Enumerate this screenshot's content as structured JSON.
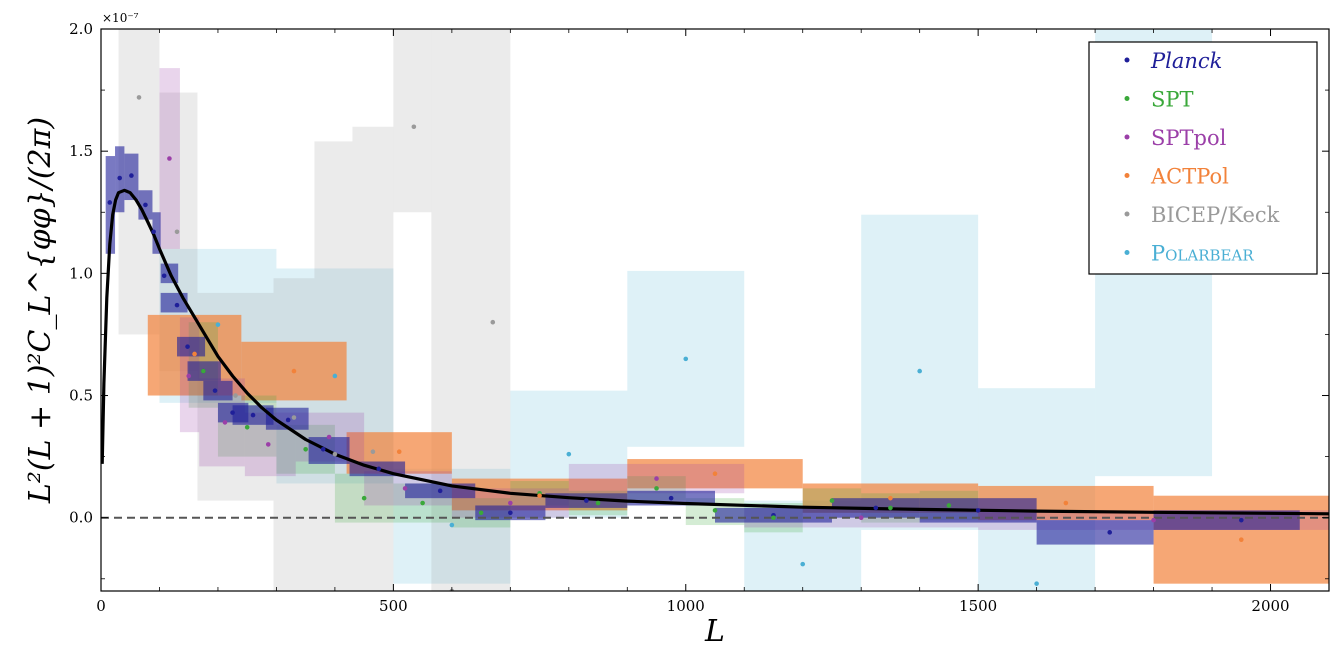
{
  "chart_data": {
    "type": "scatter",
    "xlabel": "L",
    "ylabel": "L²(L + 1)²C_L^{φφ}/(2π)",
    "y_multiplier_label": "×10⁻⁷",
    "xlim": [
      0,
      2100
    ],
    "ylim": [
      -0.3,
      2.0
    ],
    "x_ticks": [
      0,
      500,
      1000,
      1500,
      2000
    ],
    "y_ticks": [
      0.0,
      0.5,
      1.0,
      1.5,
      2.0
    ],
    "x_tick_labels": [
      "0",
      "500",
      "1000",
      "1500",
      "2000"
    ],
    "y_tick_labels": [
      "0.0",
      "0.5",
      "1.0",
      "1.5",
      "2.0"
    ],
    "grid": false,
    "legend_position": "top-right",
    "zero_line": {
      "y": 0,
      "style": "dashed",
      "color": "#555555"
    },
    "theory_curve": {
      "color": "#000000",
      "points": [
        [
          2,
          0.22
        ],
        [
          5,
          0.55
        ],
        [
          10,
          0.9
        ],
        [
          15,
          1.12
        ],
        [
          20,
          1.24
        ],
        [
          25,
          1.3
        ],
        [
          30,
          1.33
        ],
        [
          40,
          1.34
        ],
        [
          50,
          1.33
        ],
        [
          60,
          1.3
        ],
        [
          70,
          1.26
        ],
        [
          80,
          1.21
        ],
        [
          90,
          1.16
        ],
        [
          100,
          1.1
        ],
        [
          120,
          0.99
        ],
        [
          140,
          0.9
        ],
        [
          160,
          0.82
        ],
        [
          180,
          0.74
        ],
        [
          200,
          0.66
        ],
        [
          225,
          0.58
        ],
        [
          250,
          0.51
        ],
        [
          275,
          0.45
        ],
        [
          300,
          0.4
        ],
        [
          350,
          0.32
        ],
        [
          400,
          0.26
        ],
        [
          450,
          0.215
        ],
        [
          500,
          0.18
        ],
        [
          600,
          0.13
        ],
        [
          700,
          0.1
        ],
        [
          800,
          0.082
        ],
        [
          900,
          0.068
        ],
        [
          1000,
          0.058
        ],
        [
          1200,
          0.043
        ],
        [
          1400,
          0.034
        ],
        [
          1600,
          0.027
        ],
        [
          1800,
          0.022
        ],
        [
          2000,
          0.018
        ],
        [
          2100,
          0.016
        ]
      ]
    },
    "series": [
      {
        "name": "Planck",
        "color": "#1f1f99",
        "italic": true,
        "points": [
          {
            "x": 15,
            "y": 1.29,
            "x0": 8,
            "x1": 24,
            "y0": 1.08,
            "y1": 1.48
          },
          {
            "x": 32,
            "y": 1.39,
            "x0": 24,
            "x1": 40,
            "y0": 1.25,
            "y1": 1.52
          },
          {
            "x": 52,
            "y": 1.4,
            "x0": 40,
            "y0": 1.3,
            "x1": 64,
            "y1": 1.49
          },
          {
            "x": 76,
            "y": 1.28,
            "x0": 64,
            "x1": 88,
            "y0": 1.22,
            "y1": 1.34
          },
          {
            "x": 90,
            "y": 1.17,
            "x0": 88,
            "x1": 102,
            "y0": 1.08,
            "y1": 1.25
          },
          {
            "x": 108,
            "y": 0.99,
            "x0": 102,
            "x1": 132,
            "y0": 0.96,
            "y1": 1.04
          },
          {
            "x": 130,
            "y": 0.87,
            "x0": 102,
            "x1": 148,
            "y0": 0.84,
            "y1": 0.92
          },
          {
            "x": 148,
            "y": 0.7,
            "x0": 130,
            "x1": 178,
            "y0": 0.66,
            "y1": 0.74
          },
          {
            "x": 175,
            "y": 0.6,
            "x0": 148,
            "x1": 205,
            "y0": 0.56,
            "y1": 0.64
          },
          {
            "x": 195,
            "y": 0.52,
            "x0": 175,
            "x1": 225,
            "y0": 0.48,
            "y1": 0.56
          },
          {
            "x": 225,
            "y": 0.43,
            "x0": 200,
            "x1": 252,
            "y0": 0.39,
            "y1": 0.47
          },
          {
            "x": 260,
            "y": 0.42,
            "x0": 225,
            "x1": 295,
            "y0": 0.38,
            "y1": 0.46
          },
          {
            "x": 320,
            "y": 0.4,
            "x0": 282,
            "x1": 355,
            "y0": 0.36,
            "y1": 0.45
          },
          {
            "x": 380,
            "y": 0.28,
            "x0": 355,
            "x1": 425,
            "y0": 0.22,
            "y1": 0.33
          },
          {
            "x": 475,
            "y": 0.2,
            "x0": 425,
            "x1": 520,
            "y0": 0.17,
            "y1": 0.23
          },
          {
            "x": 580,
            "y": 0.11,
            "x0": 520,
            "x1": 640,
            "y0": 0.08,
            "y1": 0.14
          },
          {
            "x": 700,
            "y": 0.02,
            "x0": 640,
            "x1": 760,
            "y0": -0.01,
            "y1": 0.05
          },
          {
            "x": 830,
            "y": 0.07,
            "x0": 760,
            "x1": 900,
            "y0": 0.04,
            "y1": 0.1
          },
          {
            "x": 975,
            "y": 0.08,
            "x0": 900,
            "x1": 1050,
            "y0": 0.05,
            "y1": 0.11
          },
          {
            "x": 1150,
            "y": 0.01,
            "x0": 1050,
            "x1": 1250,
            "y0": -0.02,
            "y1": 0.04
          },
          {
            "x": 1325,
            "y": 0.04,
            "x0": 1250,
            "x1": 1400,
            "y0": 0.0,
            "y1": 0.08
          },
          {
            "x": 1500,
            "y": 0.03,
            "x0": 1400,
            "x1": 1600,
            "y0": -0.02,
            "y1": 0.08
          },
          {
            "x": 1725,
            "y": -0.06,
            "x0": 1600,
            "x1": 1800,
            "y0": -0.11,
            "y1": -0.01
          },
          {
            "x": 1950,
            "y": -0.01,
            "x0": 1800,
            "x1": 2050,
            "y0": -0.05,
            "y1": 0.03
          }
        ]
      },
      {
        "name": "SPT",
        "color": "#3aa83a",
        "italic": false,
        "points": [
          {
            "x": 175,
            "y": 0.6,
            "x0": 150,
            "x1": 200,
            "y0": 0.45,
            "y1": 0.8
          },
          {
            "x": 250,
            "y": 0.37,
            "x0": 200,
            "x1": 300,
            "y0": 0.25,
            "y1": 0.5
          },
          {
            "x": 350,
            "y": 0.28,
            "x0": 300,
            "x1": 400,
            "y0": 0.18,
            "y1": 0.38
          },
          {
            "x": 450,
            "y": 0.08,
            "x0": 400,
            "x1": 500,
            "y0": -0.02,
            "y1": 0.18
          },
          {
            "x": 550,
            "y": 0.06,
            "x0": 500,
            "x1": 600,
            "y0": -0.02,
            "y1": 0.14
          },
          {
            "x": 650,
            "y": 0.02,
            "x0": 600,
            "x1": 700,
            "y0": -0.04,
            "y1": 0.08
          },
          {
            "x": 750,
            "y": 0.1,
            "x0": 700,
            "x1": 800,
            "y0": 0.05,
            "y1": 0.15
          },
          {
            "x": 850,
            "y": 0.06,
            "x0": 800,
            "x1": 900,
            "y0": 0.01,
            "y1": 0.11
          },
          {
            "x": 950,
            "y": 0.12,
            "x0": 900,
            "x1": 1000,
            "y0": 0.07,
            "y1": 0.17
          },
          {
            "x": 1050,
            "y": 0.03,
            "x0": 1000,
            "x1": 1100,
            "y0": -0.03,
            "y1": 0.08
          },
          {
            "x": 1150,
            "y": 0.0,
            "x0": 1100,
            "x1": 1200,
            "y0": -0.06,
            "y1": 0.06
          },
          {
            "x": 1250,
            "y": 0.07,
            "x0": 1200,
            "x1": 1300,
            "y0": 0.02,
            "y1": 0.12
          },
          {
            "x": 1350,
            "y": 0.04,
            "x0": 1300,
            "x1": 1400,
            "y0": -0.02,
            "y1": 0.1
          },
          {
            "x": 1450,
            "y": 0.05,
            "x0": 1400,
            "x1": 1500,
            "y0": -0.01,
            "y1": 0.11
          }
        ]
      },
      {
        "name": "SPTpol",
        "color": "#9b3fa8",
        "italic": false,
        "points": [
          {
            "x": 117,
            "y": 1.47,
            "x0": 100,
            "x1": 135,
            "y0": 1.1,
            "y1": 1.84
          },
          {
            "x": 150,
            "y": 0.58,
            "x0": 135,
            "x1": 168,
            "y0": 0.35,
            "y1": 0.82
          },
          {
            "x": 212,
            "y": 0.39,
            "x0": 168,
            "x1": 246,
            "y0": 0.21,
            "y1": 0.57
          },
          {
            "x": 286,
            "y": 0.3,
            "x0": 246,
            "x1": 333,
            "y0": 0.17,
            "y1": 0.43
          },
          {
            "x": 390,
            "y": 0.33,
            "x0": 333,
            "x1": 450,
            "y0": 0.23,
            "y1": 0.43
          },
          {
            "x": 520,
            "y": 0.12,
            "x0": 450,
            "x1": 600,
            "y0": 0.05,
            "y1": 0.19
          },
          {
            "x": 700,
            "y": 0.06,
            "x0": 600,
            "x1": 800,
            "y0": 0.0,
            "y1": 0.12
          },
          {
            "x": 950,
            "y": 0.16,
            "x0": 800,
            "x1": 1100,
            "y0": 0.1,
            "y1": 0.22
          },
          {
            "x": 1300,
            "y": 0.0,
            "x0": 1100,
            "x1": 1500,
            "y0": -0.04,
            "y1": 0.04
          },
          {
            "x": 1800,
            "y": -0.01,
            "x0": 1500,
            "x1": 2100,
            "y0": -0.05,
            "y1": 0.03
          }
        ]
      },
      {
        "name": "ACTPol",
        "color": "#f2823a",
        "italic": false,
        "points": [
          {
            "x": 160,
            "y": 0.67,
            "x0": 80,
            "x1": 240,
            "y0": 0.5,
            "y1": 0.83
          },
          {
            "x": 330,
            "y": 0.6,
            "x0": 240,
            "x1": 420,
            "y0": 0.48,
            "y1": 0.72
          },
          {
            "x": 510,
            "y": 0.27,
            "x0": 420,
            "x1": 600,
            "y0": 0.18,
            "y1": 0.35
          },
          {
            "x": 750,
            "y": 0.09,
            "x0": 600,
            "x1": 900,
            "y0": 0.03,
            "y1": 0.16
          },
          {
            "x": 1050,
            "y": 0.18,
            "x0": 900,
            "x1": 1200,
            "y0": 0.12,
            "y1": 0.24
          },
          {
            "x": 1350,
            "y": 0.08,
            "x0": 1200,
            "x1": 1500,
            "y0": 0.02,
            "y1": 0.14
          },
          {
            "x": 1650,
            "y": 0.06,
            "x0": 1500,
            "x1": 1800,
            "y0": -0.01,
            "y1": 0.13
          },
          {
            "x": 1950,
            "y": -0.09,
            "x0": 1800,
            "x1": 2100,
            "y0": -0.27,
            "y1": 0.09
          }
        ]
      },
      {
        "name": "BICEP/Keck",
        "color": "#9a9a9a",
        "italic": false,
        "points": [
          {
            "x": 65,
            "y": 1.72,
            "x0": 30,
            "x1": 100,
            "y0": 0.75,
            "y1": 2.05
          },
          {
            "x": 130,
            "y": 1.17,
            "x0": 100,
            "x1": 165,
            "y0": 0.6,
            "y1": 1.74
          },
          {
            "x": 230,
            "y": 0.5,
            "x0": 165,
            "x1": 295,
            "y0": 0.07,
            "y1": 0.92
          },
          {
            "x": 330,
            "y": 0.41,
            "x0": 295,
            "x1": 365,
            "y0": -0.3,
            "y1": 0.98
          },
          {
            "x": 400,
            "y": 0.26,
            "x0": 365,
            "x1": 430,
            "y0": -0.3,
            "y1": 1.54
          },
          {
            "x": 465,
            "y": 0.27,
            "x0": 430,
            "x1": 500,
            "y0": -0.3,
            "y1": 1.6
          },
          {
            "x": 535,
            "y": 1.6,
            "x0": 500,
            "x1": 565,
            "y0": 1.25,
            "y1": 2.05
          },
          {
            "x": 600,
            "y": -0.3,
            "x0": 565,
            "x1": 635,
            "y0": -0.3,
            "y1": 2.05
          },
          {
            "x": 670,
            "y": 0.8,
            "x0": 635,
            "x1": 700,
            "y0": -0.3,
            "y1": 2.05
          }
        ]
      },
      {
        "name": "POLARBEAR",
        "color": "#4aafd4",
        "italic": false,
        "points": [
          {
            "x": 200,
            "y": 0.79,
            "x0": 100,
            "x1": 300,
            "y0": 0.47,
            "y1": 1.1
          },
          {
            "x": 400,
            "y": 0.58,
            "x0": 300,
            "x1": 500,
            "y0": 0.14,
            "y1": 1.02
          },
          {
            "x": 600,
            "y": -0.03,
            "x0": 500,
            "x1": 700,
            "y0": -0.27,
            "y1": 0.2
          },
          {
            "x": 800,
            "y": 0.26,
            "x0": 700,
            "x1": 900,
            "y0": 0.0,
            "y1": 0.52
          },
          {
            "x": 1000,
            "y": 0.65,
            "x0": 900,
            "x1": 1100,
            "y0": 0.29,
            "y1": 1.01
          },
          {
            "x": 1200,
            "y": -0.19,
            "x0": 1100,
            "x1": 1300,
            "y0": -0.45,
            "y1": 0.07
          },
          {
            "x": 1400,
            "y": 0.6,
            "x0": 1300,
            "x1": 1500,
            "y0": -0.05,
            "y1": 1.24
          },
          {
            "x": 1600,
            "y": -0.27,
            "x0": 1500,
            "x1": 1700,
            "y0": -0.6,
            "y1": 0.53
          },
          {
            "x": 1800,
            "y": 1.1,
            "x0": 1700,
            "x1": 1900,
            "y0": 0.17,
            "y1": 2.05
          }
        ]
      }
    ]
  }
}
